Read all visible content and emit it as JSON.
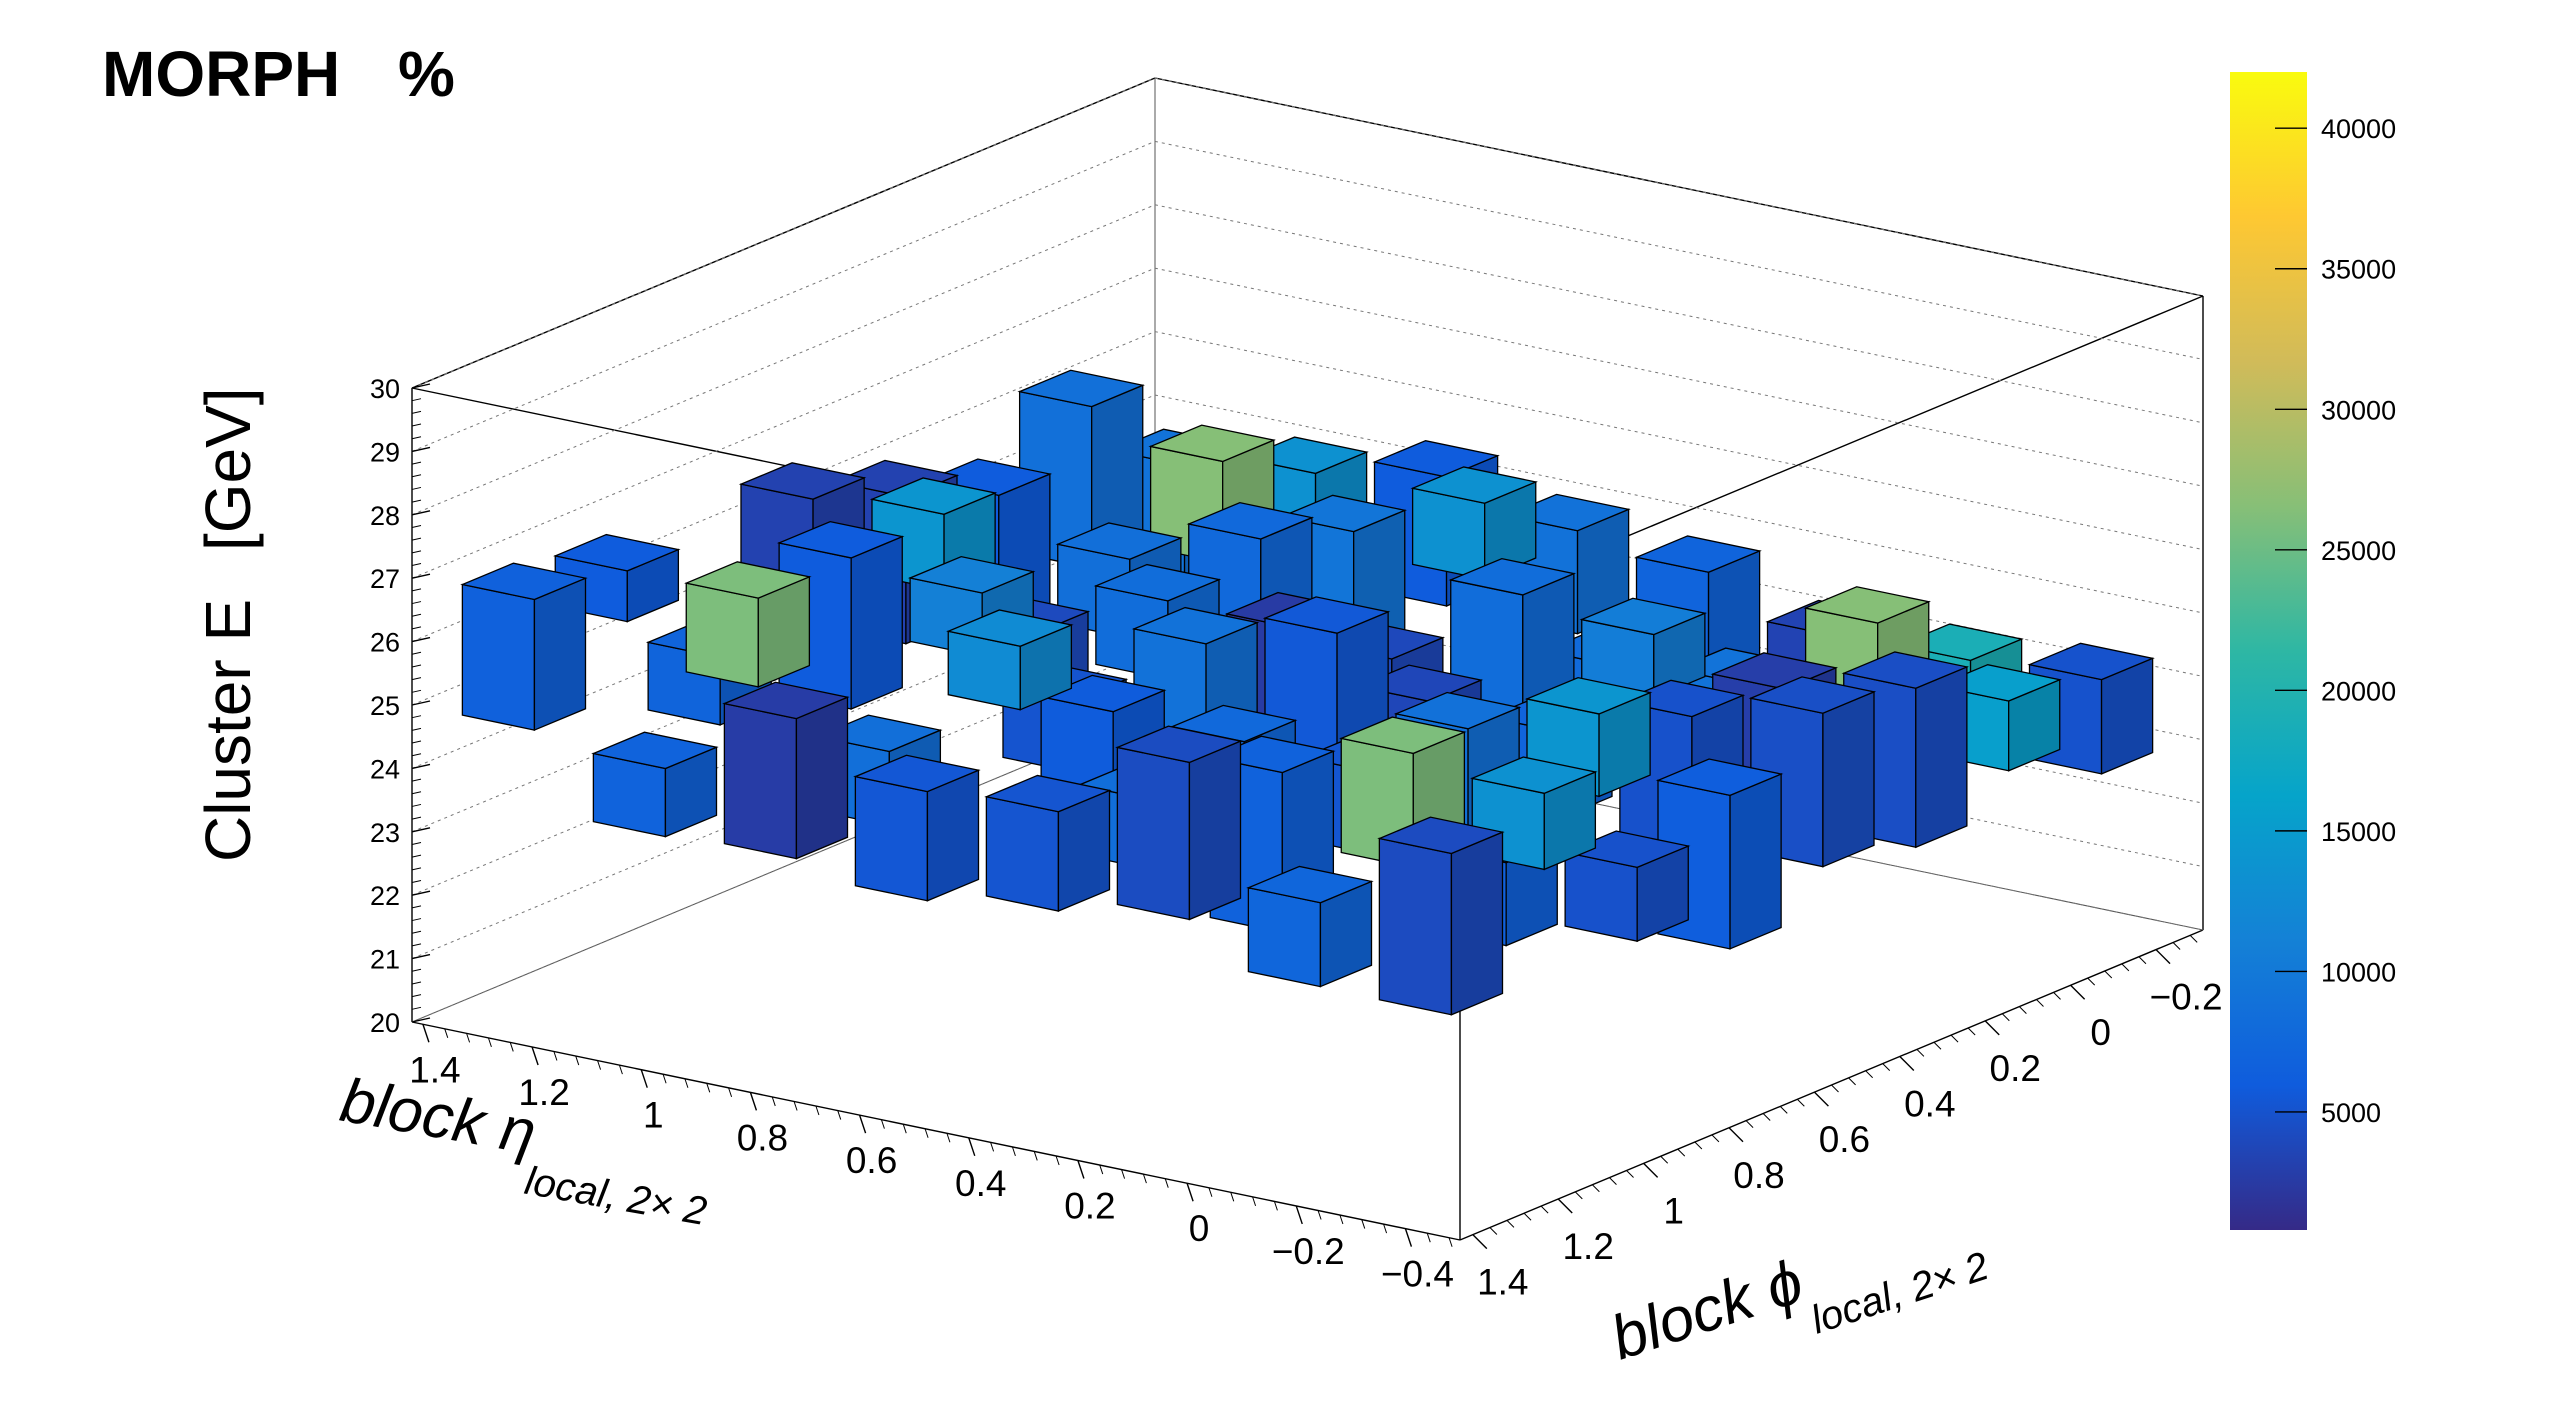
{
  "header": {
    "title": "MORPH",
    "percent_label": "%"
  },
  "chart_data": {
    "type": "lego3d",
    "z_axis": {
      "label_main": "Cluster E",
      "label_unit": "[GeV]",
      "range": [
        20,
        30
      ],
      "ticks": [
        "20",
        "21",
        "22",
        "23",
        "24",
        "25",
        "26",
        "27",
        "28",
        "29",
        "30"
      ]
    },
    "eta_axis": {
      "label_main": "block η",
      "label_sub": "local, 2× 2",
      "ticks": [
        "1.4",
        "1.2",
        "1",
        "0.8",
        "0.6",
        "0.4",
        "0.2",
        "0",
        "−0.2",
        "−0.4"
      ]
    },
    "phi_axis": {
      "label_main": "block ϕ",
      "label_sub": "local, 2× 2",
      "ticks": [
        "1.4",
        "1.2",
        "1",
        "0.8",
        "0.6",
        "0.4",
        "0.2",
        "0",
        "−0.2"
      ]
    },
    "color_axis": {
      "range": [
        800,
        42000
      ],
      "ticks": [
        "5000",
        "10000",
        "15000",
        "20000",
        "25000",
        "30000",
        "35000",
        "40000"
      ],
      "palette": [
        "#352a87",
        "#0f5cdd",
        "#1481d6",
        "#06a4ca",
        "#2eb7a4",
        "#87bf77",
        "#d1bb59",
        "#fec832",
        "#f9fb0e"
      ]
    },
    "grid": true,
    "bars": [
      {
        "eta_idx": 1,
        "phi_idx": 1,
        "z_lo": 25.3,
        "z_hi": 26.7,
        "count": 26000
      },
      {
        "eta_idx": 1,
        "phi_idx": 6,
        "z_lo": 24.2,
        "z_hi": 25.8,
        "count": 26500
      },
      {
        "eta_idx": 6,
        "phi_idx": 1,
        "z_lo": 24.6,
        "z_hi": 26.4,
        "count": 26000
      },
      {
        "eta_idx": 6,
        "phi_idx": 6,
        "z_lo": 23.6,
        "z_hi": 25.4,
        "count": 26500
      },
      {
        "eta_idx": 1,
        "phi_idx": 3,
        "z_lo": 25.6,
        "z_hi": 26.8,
        "count": 14000
      },
      {
        "eta_idx": 3,
        "phi_idx": 1,
        "z_lo": 25.8,
        "z_hi": 26.8,
        "count": 12500
      },
      {
        "eta_idx": 3,
        "phi_idx": 6,
        "z_lo": 24.8,
        "z_hi": 26.0,
        "count": 13500
      },
      {
        "eta_idx": 6,
        "phi_idx": 3,
        "z_lo": 24.5,
        "z_hi": 25.8,
        "count": 14000
      },
      {
        "eta_idx": 2,
        "phi_idx": 2,
        "z_lo": 25.6,
        "z_hi": 26.6,
        "count": 11000
      },
      {
        "eta_idx": 5,
        "phi_idx": 5,
        "z_lo": 24.4,
        "z_hi": 25.4,
        "count": 10500
      },
      {
        "eta_idx": 7,
        "phi_idx": 1,
        "z_lo": 25.0,
        "z_hi": 26.2,
        "count": 13500
      },
      {
        "eta_idx": 1,
        "phi_idx": 7,
        "z_lo": 23.9,
        "z_hi": 25.0,
        "count": 13500
      },
      {
        "eta_idx": 7,
        "phi_idx": 6,
        "z_lo": 23.5,
        "z_hi": 24.6,
        "count": 15500
      },
      {
        "eta_idx": 6,
        "phi_idx": 7,
        "z_lo": 22.6,
        "z_hi": 24.2,
        "count": 19000
      },
      {
        "eta_idx": 0,
        "phi_idx": 1,
        "z_lo": 25.9,
        "z_hi": 26.7,
        "count": 6000
      }
    ]
  }
}
